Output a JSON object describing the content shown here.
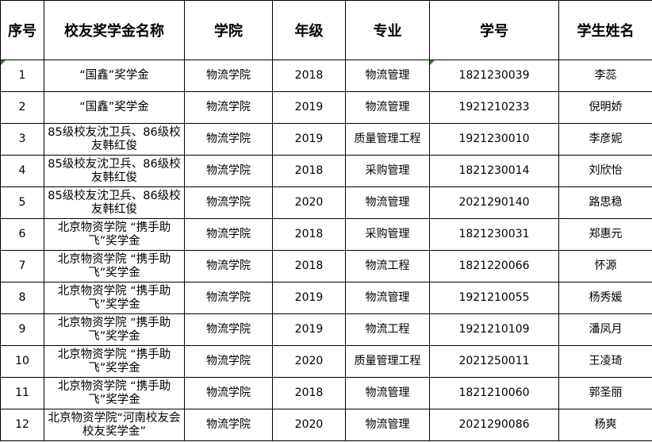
{
  "headers": [
    "序号",
    "校友奖学金名称",
    "学院",
    "年级",
    "专业",
    "学号",
    "学生姓名"
  ],
  "rows": [
    {
      "no": "1",
      "award": "“国鑫”奖学金",
      "college": "物流学院",
      "grade": "2018",
      "major": "物流管理",
      "id": "1821230039",
      "name": "李蕊"
    },
    {
      "no": "2",
      "award": "“国鑫”奖学金",
      "college": "物流学院",
      "grade": "2019",
      "major": "物流管理",
      "id": "1921210233",
      "name": "倪明娇"
    },
    {
      "no": "3",
      "award": "85级校友沈卫兵、86级校友韩红俊",
      "college": "物流学院",
      "grade": "2019",
      "major": "质量管理工程",
      "id": "1921230010",
      "name": "李彦妮"
    },
    {
      "no": "4",
      "award": "85级校友沈卫兵、86级校友韩红俊",
      "college": "物流学院",
      "grade": "2018",
      "major": "采购管理",
      "id": "1821230014",
      "name": "刘欣怡"
    },
    {
      "no": "5",
      "award": "85级校友沈卫兵、86级校友韩红俊",
      "college": "物流学院",
      "grade": "2020",
      "major": "物流管理",
      "id": "2021290140",
      "name": "路思稳"
    },
    {
      "no": "6",
      "award": "北京物资学院 “携手助飞”奖学金",
      "college": "物流学院",
      "grade": "2018",
      "major": "采购管理",
      "id": "1821230031",
      "name": "郑惠元"
    },
    {
      "no": "7",
      "award": "北京物资学院 “携手助飞”奖学金",
      "college": "物流学院",
      "grade": "2018",
      "major": "物流工程",
      "id": "1821220066",
      "name": "怀源"
    },
    {
      "no": "8",
      "award": "北京物资学院 “携手助飞”奖学金",
      "college": "物流学院",
      "grade": "2019",
      "major": "物流管理",
      "id": "1921210055",
      "name": "杨秀媛"
    },
    {
      "no": "9",
      "award": "北京物资学院 “携手助飞”奖学金",
      "college": "物流学院",
      "grade": "2019",
      "major": "物流工程",
      "id": "1921210109",
      "name": "潘凤月"
    },
    {
      "no": "10",
      "award": "北京物资学院 “携手助飞”奖学金",
      "college": "物流学院",
      "grade": "2020",
      "major": "质量管理工程",
      "id": "2021250011",
      "name": "王凌琦"
    },
    {
      "no": "11",
      "award": "北京物资学院 “携手助飞”奖学金",
      "college": "物流学院",
      "grade": "2018",
      "major": "物流管理",
      "id": "1821210060",
      "name": "郭圣丽"
    },
    {
      "no": "12",
      "award": "北京物资学院“河南校友会校友奖学金”",
      "college": "物流学院",
      "grade": "2020",
      "major": "物流管理",
      "id": "2021290086",
      "name": "杨爽"
    }
  ],
  "colors": {
    "comment_marker": "#1e8a1e",
    "grid": "#000000"
  }
}
